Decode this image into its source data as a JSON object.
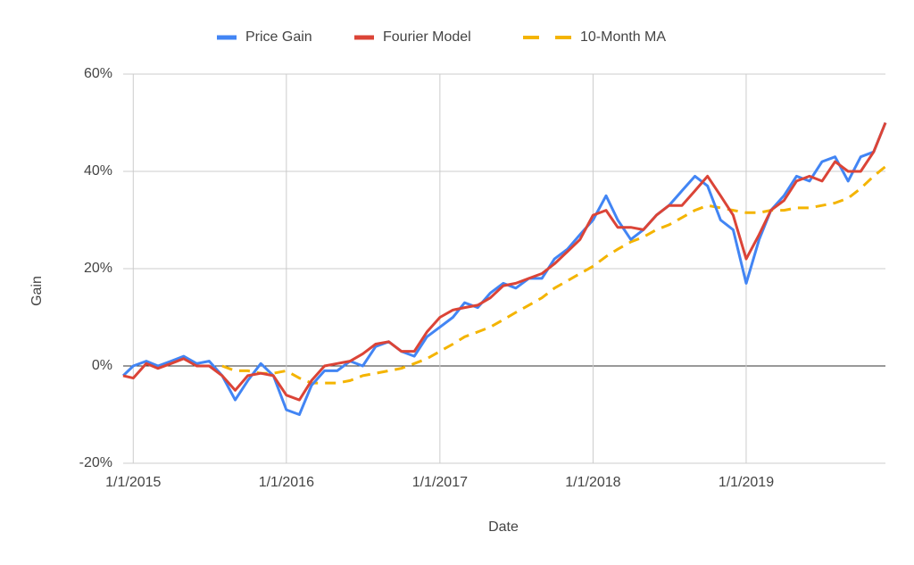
{
  "chart_data": {
    "type": "line",
    "x_label": "Date",
    "y_label": "Gain",
    "legend": "top",
    "grid": true,
    "x": [
      "2014-12-08",
      "2015-01-01",
      "2015-02-01",
      "2015-03-01",
      "2015-04-01",
      "2015-05-01",
      "2015-06-01",
      "2015-07-01",
      "2015-08-01",
      "2015-09-01",
      "2015-10-01",
      "2015-11-01",
      "2015-12-01",
      "2016-01-01",
      "2016-02-01",
      "2016-03-01",
      "2016-04-01",
      "2016-05-01",
      "2016-06-01",
      "2016-07-01",
      "2016-08-01",
      "2016-09-01",
      "2016-10-01",
      "2016-11-01",
      "2016-12-01",
      "2017-01-01",
      "2017-02-01",
      "2017-03-01",
      "2017-04-01",
      "2017-05-01",
      "2017-06-01",
      "2017-07-01",
      "2017-08-01",
      "2017-09-01",
      "2017-10-01",
      "2017-11-01",
      "2017-12-01",
      "2018-01-01",
      "2018-02-01",
      "2018-03-01",
      "2018-04-01",
      "2018-05-01",
      "2018-06-01",
      "2018-07-01",
      "2018-08-01",
      "2018-09-01",
      "2018-10-01",
      "2018-11-01",
      "2018-12-01",
      "2019-01-01",
      "2019-02-01",
      "2019-03-01",
      "2019-04-01",
      "2019-05-01",
      "2019-06-01",
      "2019-07-01",
      "2019-08-01",
      "2019-09-01",
      "2019-10-01",
      "2019-11-01",
      "2019-11-29"
    ],
    "series": [
      {
        "name": "Price Gain",
        "color": "#4285f4",
        "dashed": false,
        "values": [
          -2,
          0,
          1,
          0,
          1,
          2,
          0.5,
          1,
          -2,
          -7,
          -3,
          0.5,
          -2,
          -9,
          -10,
          -4,
          -1,
          -1,
          1,
          0,
          4,
          5,
          3,
          2,
          6,
          8,
          10,
          13,
          12,
          15,
          17,
          16,
          18,
          18,
          22,
          24,
          27,
          30,
          35,
          30,
          26,
          28,
          31,
          33,
          36,
          39,
          37,
          30,
          28,
          17,
          26,
          32,
          35,
          39,
          38,
          42,
          43,
          38,
          43,
          44,
          50
        ]
      },
      {
        "name": "Fourier Model",
        "color": "#db4437",
        "dashed": false,
        "values": [
          -2,
          -2.5,
          0.5,
          -0.5,
          0.5,
          1.5,
          0,
          0,
          -2,
          -5,
          -2,
          -1.5,
          -2,
          -6,
          -7,
          -3,
          0,
          0.5,
          1,
          2.5,
          4.5,
          5,
          3,
          3,
          7,
          10,
          11.5,
          12,
          12.5,
          14,
          16.5,
          17,
          18,
          19,
          21,
          23.5,
          26,
          31,
          32,
          28.5,
          28.5,
          28,
          31,
          33,
          33,
          36,
          39,
          35,
          31,
          22,
          27,
          32,
          34,
          38,
          39,
          38,
          42,
          40,
          40,
          44,
          50
        ]
      },
      {
        "name": "10-Month MA",
        "color": "#f4b400",
        "dashed": true,
        "values": [
          null,
          null,
          null,
          null,
          null,
          null,
          null,
          null,
          0,
          -1,
          -1,
          -1.5,
          -1.5,
          -1,
          -2.5,
          -3.5,
          -3.5,
          -3.5,
          -3,
          -2,
          -1.5,
          -1,
          -0.5,
          0.5,
          1.5,
          3,
          4.5,
          6,
          7,
          8,
          9.5,
          11,
          12.5,
          14,
          16,
          17.5,
          19,
          20.5,
          22.5,
          24,
          25.5,
          26.5,
          28,
          29,
          30.5,
          32,
          33,
          32.5,
          32,
          31.5,
          31.5,
          32,
          32,
          32.5,
          32.5,
          33,
          33.5,
          34.5,
          36.5,
          39,
          41
        ]
      }
    ],
    "xlim": [
      "2014-12-08",
      "2019-11-29"
    ],
    "xticks": [
      {
        "value": "2015-01-01",
        "label": "1/1/2015"
      },
      {
        "value": "2016-01-01",
        "label": "1/1/2016"
      },
      {
        "value": "2017-01-01",
        "label": "1/1/2017"
      },
      {
        "value": "2018-01-01",
        "label": "1/1/2018"
      },
      {
        "value": "2019-01-01",
        "label": "1/1/2019"
      }
    ],
    "ylim": [
      -20,
      60
    ],
    "yticks": [
      {
        "value": -20,
        "label": "-20%"
      },
      {
        "value": 0,
        "label": "0%"
      },
      {
        "value": 20,
        "label": "20%"
      },
      {
        "value": 40,
        "label": "40%"
      },
      {
        "value": 60,
        "label": "60%"
      }
    ]
  }
}
